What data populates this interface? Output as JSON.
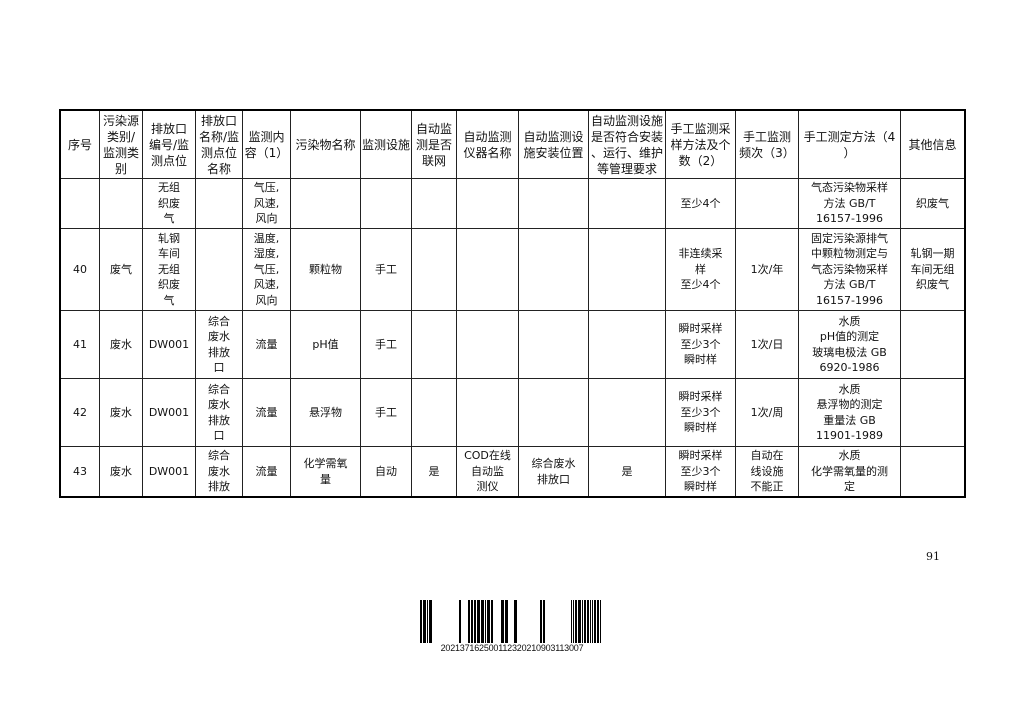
{
  "table": {
    "headers": [
      "序号",
      "污染源\n类别/\n监测类\n别",
      "排放口\n编号/监\n测点位",
      "排放口\n名称/监\n测点位\n名称",
      "监测内\n容（1）",
      "污染物名称",
      "监测设施",
      "自动监\n测是否\n联网",
      "自动监测\n仪器名称",
      "自动监测设\n施安装位置",
      "自动监测设施\n是否符合安装\n、运行、维护\n等管理要求",
      "手工监测采\n样方法及个\n数（2）",
      "手工监测\n频次（3）",
      "手工测定方法（4\n）",
      "其他信息"
    ],
    "rows": [
      [
        "",
        "",
        "无组\n织废\n气",
        "",
        "气压,\n风速,\n风向",
        "",
        "",
        "",
        "",
        "",
        "",
        "至少4个",
        "",
        "气态污染物采样\n方法 GB/T\n16157-1996",
        "织废气"
      ],
      [
        "40",
        "废气",
        "轧钢\n车间\n无组\n织废\n气",
        "",
        "温度,\n湿度,\n气压,\n风速,\n风向",
        "颗粒物",
        "手工",
        "",
        "",
        "",
        "",
        "非连续采\n样\n至少4个",
        "1次/年",
        "固定污染源排气\n中颗粒物测定与\n气态污染物采样\n方法 GB/T\n16157-1996",
        "轧钢一期\n车间无组\n织废气"
      ],
      [
        "41",
        "废水",
        "DW001",
        "综合\n废水\n排放\n口",
        "流量",
        "pH值",
        "手工",
        "",
        "",
        "",
        "",
        "瞬时采样\n至少3个\n瞬时样",
        "1次/日",
        "水质\npH值的测定\n玻璃电极法 GB\n6920-1986",
        ""
      ],
      [
        "42",
        "废水",
        "DW001",
        "综合\n废水\n排放\n口",
        "流量",
        "悬浮物",
        "手工",
        "",
        "",
        "",
        "",
        "瞬时采样\n至少3个\n瞬时样",
        "1次/周",
        "水质\n悬浮物的测定\n重量法 GB\n11901-1989",
        ""
      ],
      [
        "43",
        "废水",
        "DW001",
        "综合\n废水\n排放",
        "流量",
        "化学需氧\n量",
        "自动",
        "是",
        "COD在线\n自动监\n测仪",
        "综合废水\n排放口",
        "是",
        "瞬时采样\n至少3个\n瞬时样",
        "自动在\n线设施\n不能正",
        "水质\n化学需氧量的测\n定",
        ""
      ]
    ]
  },
  "page_number": "91",
  "barcode": {
    "number": "2021371625001123202109031130​07"
  }
}
